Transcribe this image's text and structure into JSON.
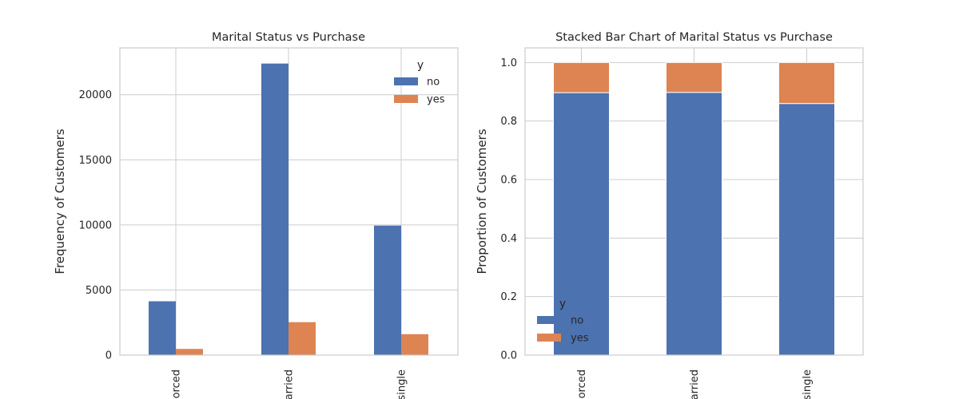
{
  "colors": {
    "no": "#4c72b0",
    "yes": "#dd8452",
    "grid": "#cccccc",
    "spine": "#cccccc",
    "text": "#262626"
  },
  "chart_data": [
    {
      "type": "bar",
      "title": "Marital Status vs Purchase",
      "xlabel": "",
      "ylabel": "Frequency of Customers",
      "categories": [
        "divorced",
        "married",
        "single"
      ],
      "categories_visible": [
        "orced",
        "arried",
        "single"
      ],
      "series": [
        {
          "name": "no",
          "values": [
            4136,
            22396,
            9948
          ]
        },
        {
          "name": "yes",
          "values": [
            476,
            2532,
            1608
          ]
        }
      ],
      "ylim": [
        0,
        23600
      ],
      "yticks": [
        0,
        5000,
        10000,
        15000,
        20000
      ],
      "ytick_labels": [
        "0",
        "5000",
        "10000",
        "15000",
        "20000"
      ],
      "legend": {
        "title": "y",
        "entries": [
          "no",
          "yes"
        ],
        "placement": "top-right"
      },
      "grid": true
    },
    {
      "type": "stacked-bar",
      "title": "Stacked Bar Chart of Marital Status vs Purchase",
      "xlabel": "",
      "ylabel": "Proportion of Customers",
      "categories": [
        "divorced",
        "married",
        "single"
      ],
      "categories_visible": [
        "orced",
        "arried",
        "single"
      ],
      "series": [
        {
          "name": "no",
          "values": [
            0.897,
            0.898,
            0.86
          ]
        },
        {
          "name": "yes",
          "values": [
            0.103,
            0.102,
            0.14
          ]
        }
      ],
      "ylim": [
        0,
        1.05
      ],
      "yticks": [
        0,
        0.2,
        0.4,
        0.6,
        0.8,
        1.0
      ],
      "ytick_labels": [
        "0.0",
        "0.2",
        "0.4",
        "0.6",
        "0.8",
        "1.0"
      ],
      "legend": {
        "title": "y",
        "entries": [
          "no",
          "yes"
        ],
        "placement": "bottom-left"
      },
      "grid": true
    }
  ]
}
